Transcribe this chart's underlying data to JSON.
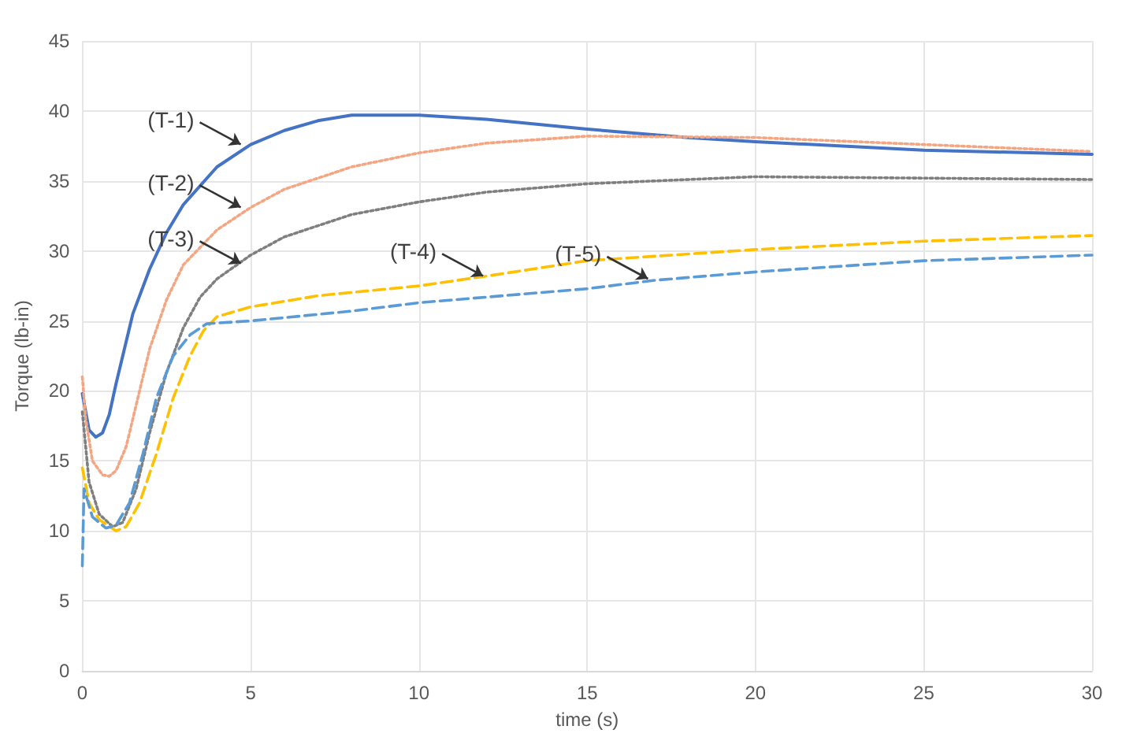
{
  "chart_data": {
    "type": "line",
    "xlabel": "time (s)",
    "ylabel": "Torque (lb-in)",
    "xlim": [
      0,
      30
    ],
    "xticks": [
      0,
      5,
      10,
      15,
      20,
      25,
      30
    ],
    "ylim": [
      0,
      45
    ],
    "yticks": [
      0,
      5,
      10,
      15,
      20,
      25,
      30,
      35,
      40,
      45
    ],
    "grid": true,
    "marker": "none",
    "series": [
      {
        "color": "#4472c4",
        "line_style": "solid",
        "x": [
          0,
          0.1,
          0.2,
          0.4,
          0.6,
          0.8,
          1,
          1.5,
          2,
          2.5,
          3,
          4,
          5,
          6,
          7,
          8,
          10,
          12,
          15,
          18,
          20,
          25,
          30
        ],
        "values": [
          19.8,
          18.5,
          17.2,
          16.7,
          17,
          18.3,
          20.5,
          25.5,
          28.7,
          31.3,
          33.3,
          36,
          37.6,
          38.6,
          39.3,
          39.7,
          39.7,
          39.4,
          38.7,
          38.1,
          37.8,
          37.2,
          36.9
        ]
      },
      {
        "color": "#f4a582",
        "line_style": "dotted",
        "x": [
          0,
          0.1,
          0.3,
          0.6,
          0.8,
          1,
          1.3,
          1.6,
          2,
          2.5,
          3,
          4,
          5,
          6,
          8,
          10,
          12,
          15,
          20,
          25,
          30
        ],
        "values": [
          21,
          18,
          15,
          14,
          13.9,
          14.3,
          16,
          19,
          23,
          26.5,
          29,
          31.5,
          33.1,
          34.4,
          36,
          37,
          37.7,
          38.2,
          38.1,
          37.6,
          37.1
        ]
      },
      {
        "color": "#7f7f7f",
        "line_style": "dotted",
        "x": [
          0,
          0.2,
          0.5,
          0.9,
          1.2,
          1.6,
          2,
          2.5,
          3,
          3.5,
          4,
          5,
          6,
          8,
          10,
          12,
          15,
          20,
          25,
          30
        ],
        "values": [
          18.5,
          13.5,
          11.2,
          10.3,
          10.6,
          13,
          17,
          21.3,
          24.5,
          26.7,
          28,
          29.7,
          31,
          32.6,
          33.5,
          34.2,
          34.8,
          35.3,
          35.2,
          35.1
        ]
      },
      {
        "color": "#ffc000",
        "line_style": "dashed",
        "x": [
          0,
          0.2,
          0.5,
          1,
          1.3,
          1.7,
          2.2,
          2.7,
          3.2,
          3.6,
          4,
          5,
          7,
          10,
          12,
          15,
          20,
          25,
          30
        ],
        "values": [
          14.5,
          12,
          10.8,
          10,
          10.3,
          12,
          15.5,
          19.5,
          22.5,
          24.3,
          25.3,
          26,
          26.8,
          27.5,
          28.2,
          29.3,
          30.1,
          30.7,
          31.1
        ]
      },
      {
        "color": "#5b9bd5",
        "line_style": "dashed",
        "x": [
          0,
          0.05,
          0.3,
          0.7,
          1,
          1.4,
          1.8,
          2.2,
          2.7,
          3.2,
          3.7,
          5,
          8,
          10,
          15,
          17,
          20,
          25,
          30
        ],
        "values": [
          7.5,
          13,
          11,
          10.2,
          10.4,
          12,
          15.5,
          19.5,
          22.5,
          24,
          24.8,
          25,
          25.7,
          26.3,
          27.3,
          27.9,
          28.5,
          29.3,
          29.7
        ]
      }
    ],
    "annotations": [
      {
        "text": "(T-1)",
        "x": 4.8,
        "y": 37.5
      },
      {
        "text": "(T-2)",
        "x": 4.8,
        "y": 33
      },
      {
        "text": "(T-3)",
        "x": 4.8,
        "y": 29
      },
      {
        "text": "(T-4)",
        "x": 12,
        "y": 28.1
      },
      {
        "text": "(T-5)",
        "x": 16.9,
        "y": 27.9
      }
    ]
  }
}
